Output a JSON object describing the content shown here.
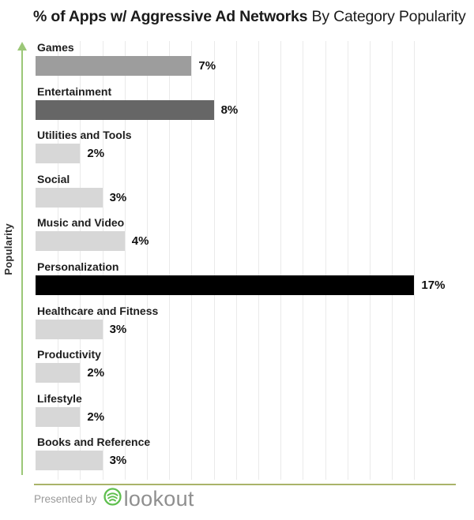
{
  "title": {
    "bold": "% of Apps w/ Aggressive Ad Networks",
    "regular": "By Category Popularity"
  },
  "y_axis": {
    "label": "Popularity"
  },
  "footer": {
    "presented_by": "Presented by",
    "brand": "lookout",
    "icon": "lookout-shield-icon"
  },
  "colors": {
    "axis_green": "#9bc777",
    "divider_olive": "#a9b369",
    "gridline": "#eaeaea",
    "lookout_green": "#5fbf4f",
    "footer_text": "#9a9a9a",
    "bar_light_gray": "#d7d7d7",
    "bar_medium_gray": "#9d9d9d",
    "bar_dark_gray": "#666666",
    "bar_black": "#000000"
  },
  "chart_data": {
    "type": "bar",
    "orientation": "horizontal",
    "title": "% of Apps w/ Aggressive Ad Networks By Category Popularity",
    "ylabel": "Popularity",
    "xlim": [
      0,
      17
    ],
    "grid": "vertical gridlines at 1% intervals, 1% to 17%",
    "legend": "none",
    "categories": [
      "Games",
      "Entertainment",
      "Utilities and Tools",
      "Social",
      "Music and Video",
      "Personalization",
      "Healthcare and Fitness",
      "Productivity",
      "Lifestyle",
      "Books and Reference"
    ],
    "values": [
      7,
      8,
      2,
      3,
      4,
      17,
      3,
      2,
      2,
      3
    ],
    "value_labels": [
      "7%",
      "8%",
      "2%",
      "3%",
      "4%",
      "17%",
      "3%",
      "2%",
      "2%",
      "3%"
    ],
    "bar_colors": [
      "#9d9d9d",
      "#666666",
      "#d7d7d7",
      "#d7d7d7",
      "#d7d7d7",
      "#000000",
      "#d7d7d7",
      "#d7d7d7",
      "#d7d7d7",
      "#d7d7d7"
    ]
  }
}
